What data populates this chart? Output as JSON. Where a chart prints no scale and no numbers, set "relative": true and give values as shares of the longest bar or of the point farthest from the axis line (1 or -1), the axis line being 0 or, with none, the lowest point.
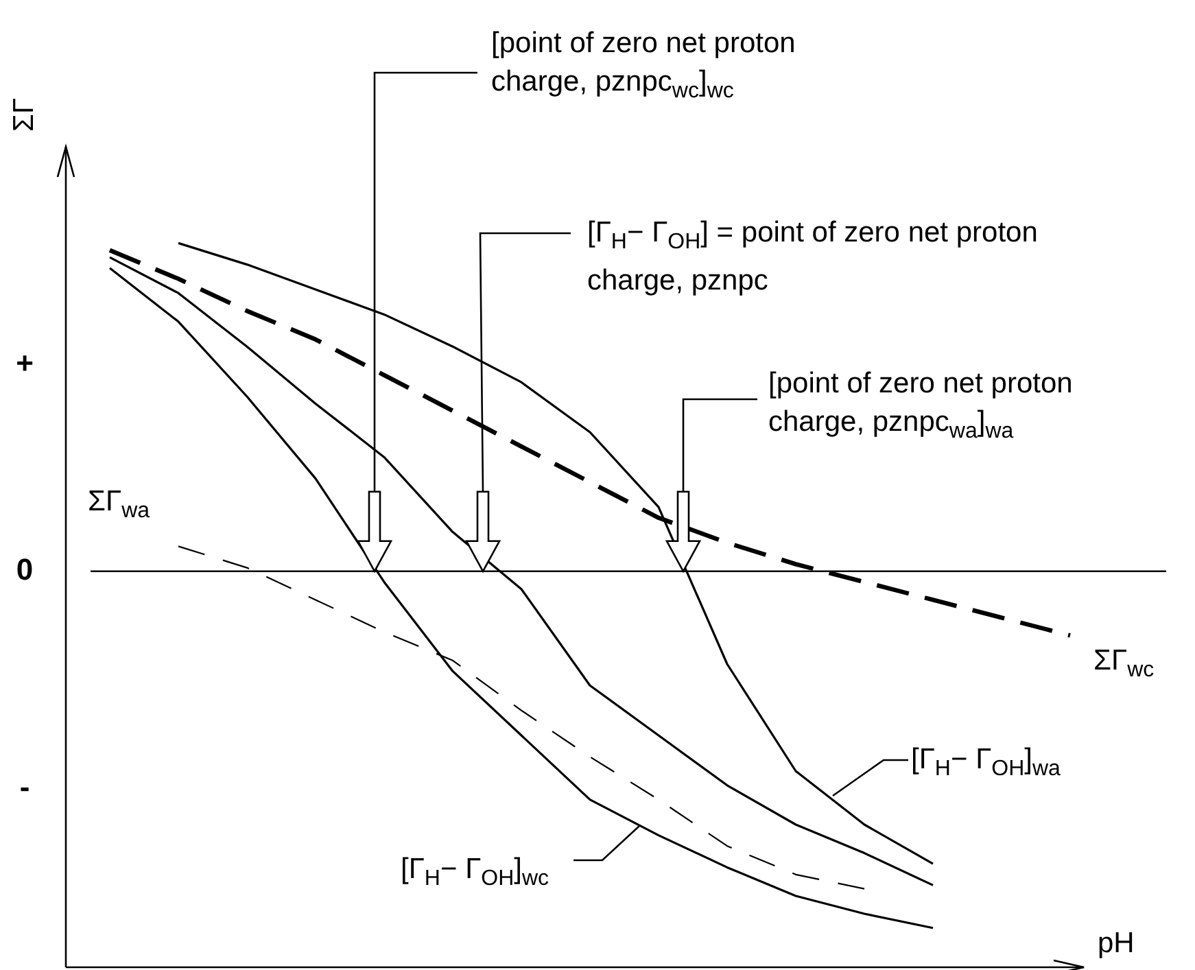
{
  "chart_data": {
    "type": "line",
    "relative": true,
    "line_style": "solid",
    "ylabel": "ΣΓ",
    "xlabel": "pH",
    "categories": [
      null,
      null,
      null,
      null,
      null,
      null,
      null,
      null,
      null,
      null,
      null,
      null,
      null,
      null,
      null
    ],
    "series": [
      {
        "name": "[Γ$_{H}$− Γ$_{OH}$]$_{wa}$",
        "color": "#000000",
        "values": [
          null,
          0.92,
          0.86,
          0.79,
          0.72,
          0.63,
          0.53,
          0.39,
          0.18,
          -0.26,
          -0.56,
          -0.71,
          -0.82,
          null,
          null
        ]
      },
      {
        "name": "ΣΓ$_{wc}$",
        "color": "#000000",
        "line_style": "dashed",
        "values": [
          0.9,
          0.82,
          0.73,
          0.65,
          0.55,
          0.45,
          0.35,
          0.25,
          0.15,
          0.08,
          0.02,
          -0.03,
          -0.08,
          -0.13,
          -0.18
        ]
      },
      {
        "color": "#000000",
        "values": [
          0.88,
          0.78,
          0.63,
          0.47,
          0.32,
          0.11,
          -0.05,
          -0.32,
          -0.46,
          -0.6,
          -0.71,
          -0.79,
          -0.88,
          null,
          null
        ]
      },
      {
        "name": "[Γ$_{H}$− Γ$_{OH}$]$_{wc}$",
        "color": "#000000",
        "values": [
          0.85,
          0.7,
          0.49,
          0.26,
          -0.03,
          -0.28,
          -0.46,
          -0.64,
          -0.74,
          -0.83,
          -0.91,
          -0.96,
          -1,
          null,
          null
        ]
      },
      {
        "name": "ΣΓ$_{wa}$",
        "color": "#000000",
        "line_style": "dashed",
        "values": [
          null,
          0.07,
          0.01,
          -0.08,
          -0.17,
          -0.25,
          -0.39,
          -0.52,
          -0.64,
          -0.77,
          -0.85,
          -0.89,
          null,
          null,
          null
        ]
      }
    ],
    "ref_lines": [
      {
        "axis": "y",
        "value": 0,
        "label": "0",
        "color": "#000000"
      }
    ],
    "annotations": [
      "+",
      "-",
      "[point of zero net proton charge, pznpc$_{wc}$]$_{wc}$",
      "[Γ$_{H}$− Γ$_{OH}$] = point of zero net proton charge, pznpc",
      "[point of zero net proton charge, pznpc$_{wa}$]$_{wa}$"
    ]
  }
}
